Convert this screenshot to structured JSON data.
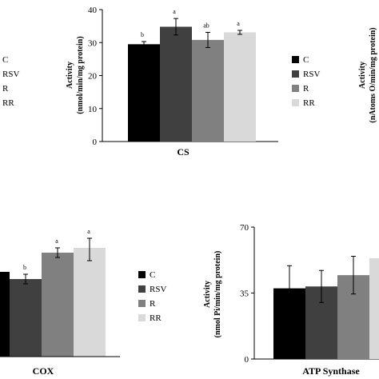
{
  "legend_entries": [
    "C",
    "RSV",
    "R",
    "RR"
  ],
  "colors": {
    "C": "#000000",
    "RSV": "#404040",
    "R": "#808080",
    "RR": "#d9d9d9"
  },
  "chart_data": [
    {
      "type": "bar",
      "title": "CS",
      "ylabel_line1": "Activity",
      "ylabel_line2": "(nmol/min/mg protein)",
      "categories": [
        "C",
        "RSV",
        "R",
        "RR"
      ],
      "values": [
        29.5,
        34.8,
        30.8,
        33.1
      ],
      "errors": [
        0.8,
        2.5,
        2.3,
        0.6
      ],
      "sig_labels": [
        "b",
        "a",
        "ab",
        "a"
      ],
      "ylim": [
        0,
        40
      ],
      "yticks": [
        "0",
        "10",
        "20",
        "30",
        "40"
      ],
      "legend": "right",
      "grid": false
    },
    {
      "type": "bar",
      "title": "COX",
      "categories": [
        "C",
        "RSV",
        "R",
        "RR"
      ],
      "values": [
        null,
        null,
        null,
        null
      ],
      "sig_labels": [
        "",
        "b",
        "a",
        "a"
      ],
      "legend": "right",
      "grid": false,
      "note": "cropped panel; y-axis not visible"
    },
    {
      "type": "bar",
      "title": "ATP Synthase",
      "ylabel_line1": "Activity",
      "ylabel_line2": "(nmol Pi/min/mg protein)",
      "categories": [
        "C",
        "RSV",
        "R",
        "RR"
      ],
      "values": [
        37.5,
        38.5,
        44.5,
        53.5
      ],
      "errors": [
        12.0,
        8.5,
        10.0,
        null
      ],
      "ylim": [
        0,
        70
      ],
      "yticks": [
        "0",
        "35",
        "70"
      ],
      "grid": false
    },
    {
      "type": "bar",
      "ylabel_line1": "Activity",
      "ylabel_line2": "(nAtoms O/min/mg protein)",
      "note": "cropped panel at right edge"
    }
  ]
}
